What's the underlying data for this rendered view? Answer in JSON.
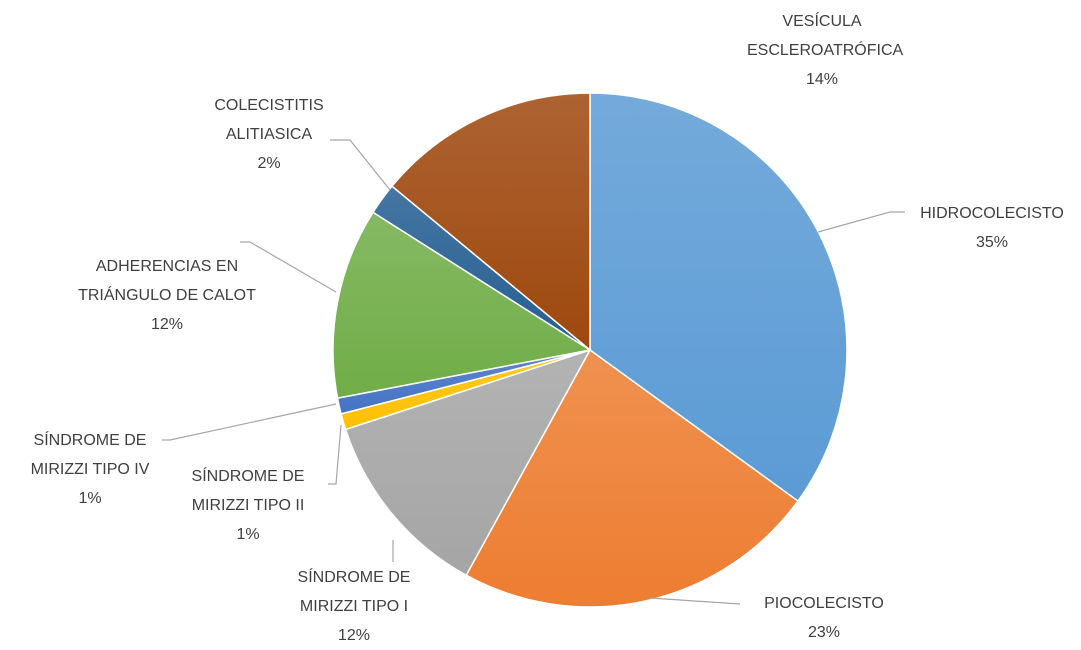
{
  "chart_data": {
    "type": "pie",
    "categories": [
      "HIDROCOLECISTO",
      "PIOCOLECISTO",
      "SÍNDROME DE MIRIZZI TIPO I",
      "SÍNDROME DE MIRIZZI TIPO II",
      "SÍNDROME DE MIRIZZI TIPO IV",
      "ADHERENCIAS EN TRIÁNGULO DE CALOT",
      "COLECISTITIS ALITIASICA",
      "VESÍCULA ESCLEROATRÓFICA"
    ],
    "values": [
      35,
      23,
      12,
      1,
      1,
      12,
      2,
      14
    ],
    "value_labels": [
      "35%",
      "23%",
      "12%",
      "1%",
      "1%",
      "12%",
      "2%",
      "14%"
    ],
    "colors": [
      "#5b9bd5",
      "#ed7d31",
      "#a5a5a5",
      "#ffc000",
      "#4472c4",
      "#70ad47",
      "#255e91",
      "#9e480e"
    ]
  }
}
